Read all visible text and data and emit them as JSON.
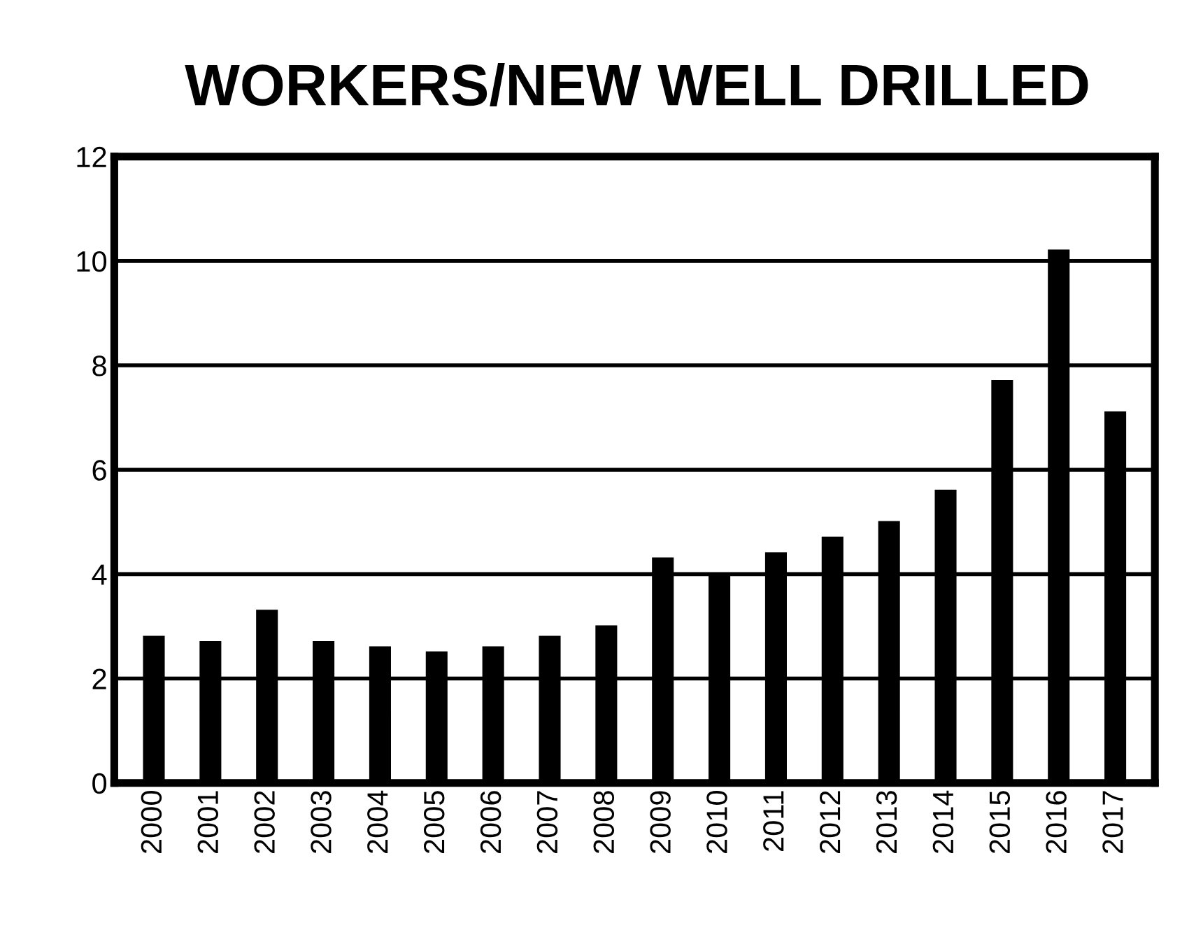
{
  "chart_data": {
    "type": "bar",
    "title": "WORKERS/NEW WELL DRILLED",
    "categories": [
      "2000",
      "2001",
      "2002",
      "2003",
      "2004",
      "2005",
      "2006",
      "2007",
      "2008",
      "2009",
      "2010",
      "2011",
      "2012",
      "2013",
      "2014",
      "2015",
      "2016",
      "2017"
    ],
    "values": [
      2.8,
      2.7,
      3.3,
      2.7,
      2.6,
      2.5,
      2.6,
      2.8,
      3.0,
      4.3,
      4.0,
      4.4,
      4.7,
      5.0,
      5.6,
      7.7,
      10.2,
      7.1
    ],
    "color": "#000000",
    "ylim": [
      0,
      12
    ],
    "yticks": [
      0,
      2,
      4,
      6,
      8,
      10,
      12
    ],
    "grid": "y"
  }
}
